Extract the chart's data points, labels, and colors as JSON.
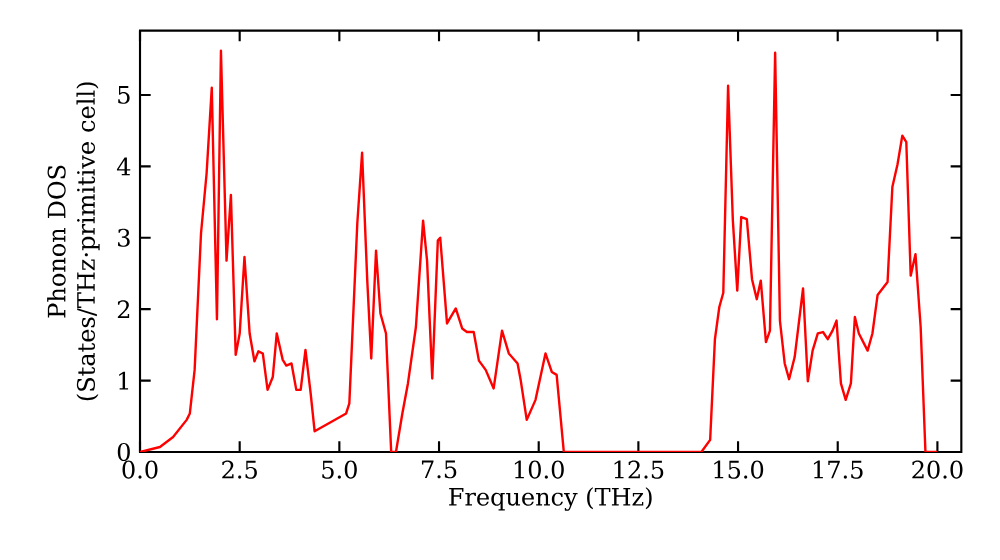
{
  "chart_data": {
    "type": "line",
    "xlabel": "Frequency (THz)",
    "ylabel": "Phonon DOS (States/THz·primitive cell)",
    "color": "#ff0000",
    "x": [
      0,
      0.5,
      0.83,
      1.17,
      1.25,
      1.37,
      1.53,
      1.67,
      1.8,
      1.93,
      2.03,
      2.17,
      2.28,
      2.4,
      2.5,
      2.62,
      2.75,
      2.87,
      2.97,
      3.08,
      3.2,
      3.33,
      3.43,
      3.58,
      3.67,
      3.8,
      3.92,
      4.03,
      4.15,
      4.28,
      4.38,
      5.17,
      5.25,
      5.45,
      5.57,
      5.7,
      5.8,
      5.92,
      6.03,
      6.17,
      6.3,
      6.42,
      6.58,
      6.72,
      6.92,
      7.1,
      7.2,
      7.33,
      7.47,
      7.53,
      7.7,
      7.92,
      8.08,
      8.2,
      8.37,
      8.5,
      8.67,
      8.87,
      9.08,
      9.25,
      9.47,
      9.55,
      9.7,
      9.92,
      10.17,
      10.33,
      10.45,
      10.63,
      14.08,
      14.3,
      14.42,
      14.53,
      14.63,
      14.75,
      14.87,
      14.98,
      15.08,
      15.22,
      15.35,
      15.47,
      15.57,
      15.7,
      15.8,
      15.93,
      16.05,
      16.17,
      16.28,
      16.42,
      16.63,
      16.75,
      16.87,
      17.0,
      17.13,
      17.25,
      17.37,
      17.47,
      17.58,
      17.7,
      17.83,
      17.93,
      18.03,
      18.25,
      18.37,
      18.5,
      18.75,
      18.87,
      19.0,
      19.12,
      19.22,
      19.33,
      19.45,
      19.58,
      19.7,
      20.0
    ],
    "values": [
      0,
      0.07,
      0.21,
      0.45,
      0.54,
      1.15,
      3.06,
      3.9,
      5.1,
      1.86,
      5.62,
      2.68,
      3.6,
      1.36,
      1.66,
      2.73,
      1.66,
      1.27,
      1.41,
      1.38,
      0.87,
      1.05,
      1.66,
      1.29,
      1.21,
      1.24,
      0.87,
      0.87,
      1.43,
      0.82,
      0.29,
      0.54,
      0.68,
      3.2,
      4.19,
      2.4,
      1.31,
      2.82,
      1.94,
      1.66,
      0,
      0,
      0.54,
      0.96,
      1.75,
      3.24,
      2.68,
      1.03,
      2.96,
      3.0,
      1.8,
      2.01,
      1.73,
      1.68,
      1.68,
      1.28,
      1.15,
      0.89,
      1.7,
      1.38,
      1.24,
      1.0,
      0.45,
      0.73,
      1.38,
      1.12,
      1.08,
      0,
      0,
      0.17,
      1.58,
      2.03,
      2.23,
      5.13,
      3.24,
      2.26,
      3.29,
      3.26,
      2.42,
      2.14,
      2.4,
      1.54,
      1.7,
      5.59,
      1.84,
      1.24,
      1.02,
      1.33,
      2.29,
      0.99,
      1.42,
      1.66,
      1.68,
      1.58,
      1.7,
      1.84,
      0.96,
      0.73,
      0.96,
      1.89,
      1.66,
      1.42,
      1.66,
      2.2,
      2.38,
      3.71,
      4.03,
      4.43,
      4.34,
      2.47,
      2.77,
      1.75,
      0,
      0
    ],
    "xlim": [
      0,
      20.6
    ],
    "ylim": [
      0,
      5.9
    ],
    "xticks": [
      {
        "value": 0,
        "label": "0.0"
      },
      2.5,
      {
        "value": 5,
        "label": "5.0"
      },
      7.5,
      {
        "value": 10,
        "label": "10.0"
      },
      12.5,
      {
        "value": 15,
        "label": "15.0"
      },
      17.5,
      {
        "value": 20,
        "label": "20.0"
      }
    ],
    "yticks": [
      0,
      1,
      2,
      3,
      4,
      5
    ]
  }
}
